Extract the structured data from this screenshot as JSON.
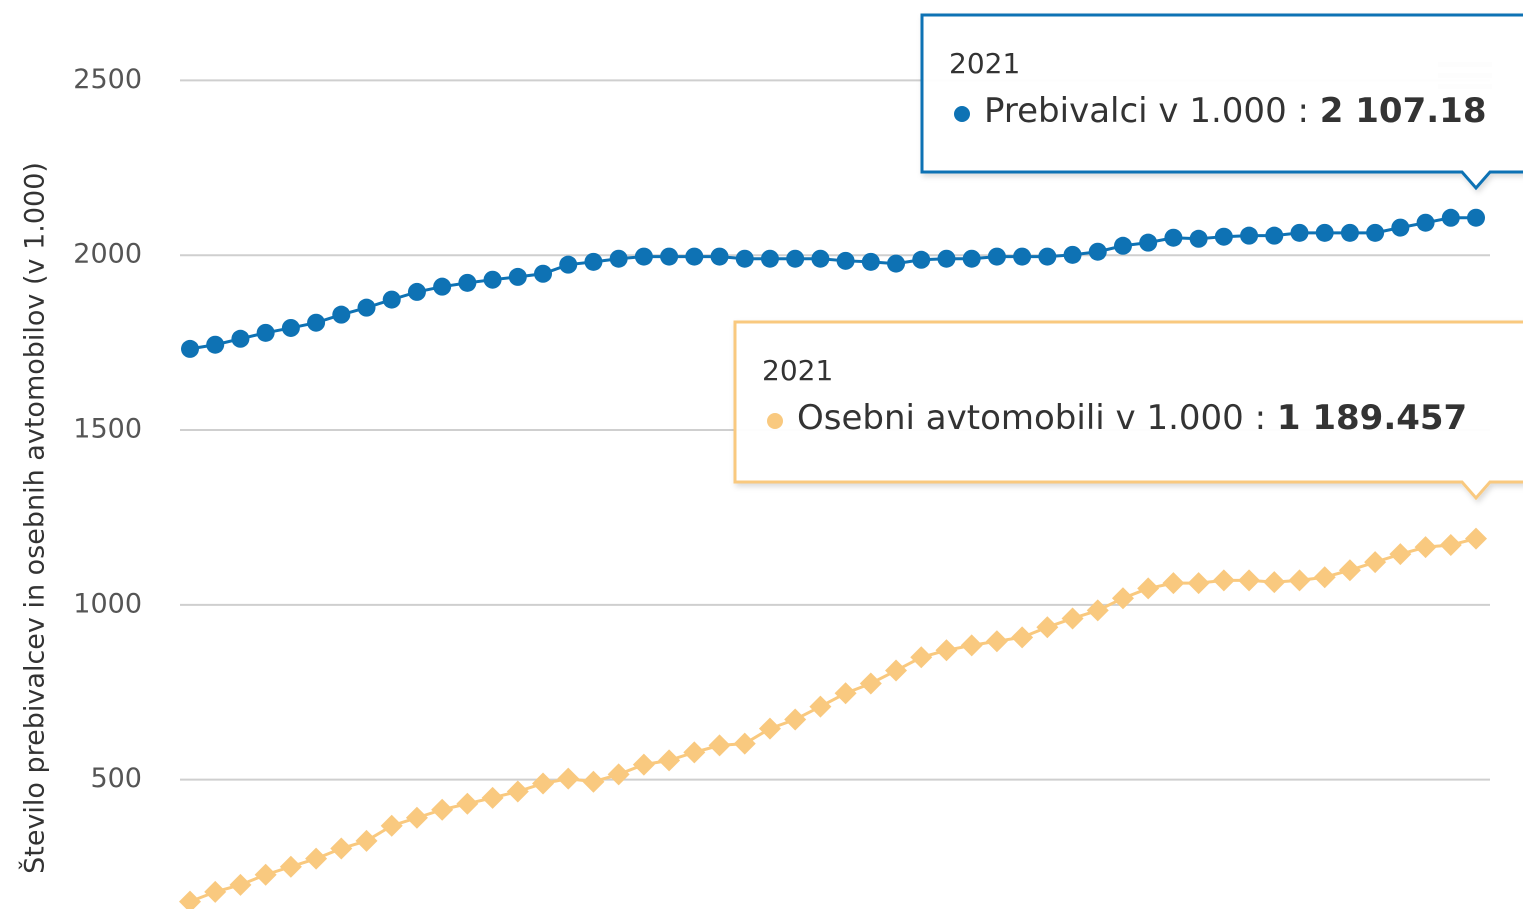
{
  "chart_data": {
    "type": "line",
    "y_axis_label": "Število prebivalcev in osebnih avtomobilov (v 1.000)",
    "categories": [
      null,
      null,
      null,
      null,
      null,
      null,
      null,
      null,
      null,
      null,
      null,
      null,
      null,
      null,
      null,
      null,
      null,
      null,
      null,
      null,
      null,
      null,
      null,
      null,
      null,
      null,
      null,
      null,
      null,
      null,
      null,
      null,
      null,
      null,
      null,
      null,
      null,
      null,
      null,
      null,
      null,
      null,
      null,
      null,
      null,
      null,
      null,
      null,
      null,
      null,
      null,
      "2021"
    ],
    "ylim": [
      130,
      2730
    ],
    "yticks": [
      500,
      1000,
      1500,
      2000,
      2500
    ],
    "grid": true,
    "tooltip_separator": " : ",
    "series": [
      {
        "name": "Prebivalci v 1.000",
        "color": "#0e72b4",
        "marker": "circle",
        "values": [
          1732,
          1744,
          1761,
          1778,
          1792,
          1807,
          1830,
          1850,
          1873,
          1895,
          1910,
          1921,
          1930,
          1938,
          1947,
          1973,
          1981,
          1990,
          1996,
          1996,
          1996,
          1996,
          1990,
          1990,
          1990,
          1990,
          1984,
          1981,
          1976,
          1987,
          1990,
          1990,
          1996,
          1996,
          1996,
          2001,
          2010,
          2027,
          2036,
          2050,
          2047,
          2053,
          2056,
          2056,
          2064,
          2064,
          2064,
          2064,
          2079,
          2093,
          2107,
          2107.18
        ],
        "value_labels": [
          null,
          null,
          null,
          null,
          null,
          null,
          null,
          null,
          null,
          null,
          null,
          null,
          null,
          null,
          null,
          null,
          null,
          null,
          null,
          null,
          null,
          null,
          null,
          null,
          null,
          null,
          null,
          null,
          null,
          null,
          null,
          null,
          null,
          null,
          null,
          null,
          null,
          null,
          null,
          null,
          null,
          null,
          null,
          null,
          null,
          null,
          null,
          null,
          null,
          null,
          null,
          "2 107.18"
        ]
      },
      {
        "name": "Osebni avtomobili v 1.000",
        "color": "#f9c97f",
        "marker": "diamond",
        "values": [
          151,
          179,
          199,
          228,
          251,
          274,
          303,
          325,
          368,
          391,
          414,
          431,
          448,
          466,
          489,
          503,
          494,
          515,
          543,
          555,
          578,
          598,
          603,
          646,
          672,
          709,
          747,
          775,
          812,
          850,
          870,
          884,
          896,
          907,
          936,
          961,
          984,
          1019,
          1047,
          1062,
          1062,
          1070,
          1070,
          1065,
          1070,
          1079,
          1099,
          1122,
          1145,
          1165,
          1171,
          1189.457
        ],
        "value_labels": [
          null,
          null,
          null,
          null,
          null,
          null,
          null,
          null,
          null,
          null,
          null,
          null,
          null,
          null,
          null,
          null,
          null,
          null,
          null,
          null,
          null,
          null,
          null,
          null,
          null,
          null,
          null,
          null,
          null,
          null,
          null,
          null,
          null,
          null,
          null,
          null,
          null,
          null,
          null,
          null,
          null,
          null,
          null,
          null,
          null,
          null,
          null,
          null,
          null,
          null,
          null,
          "1 189.457"
        ]
      }
    ]
  }
}
